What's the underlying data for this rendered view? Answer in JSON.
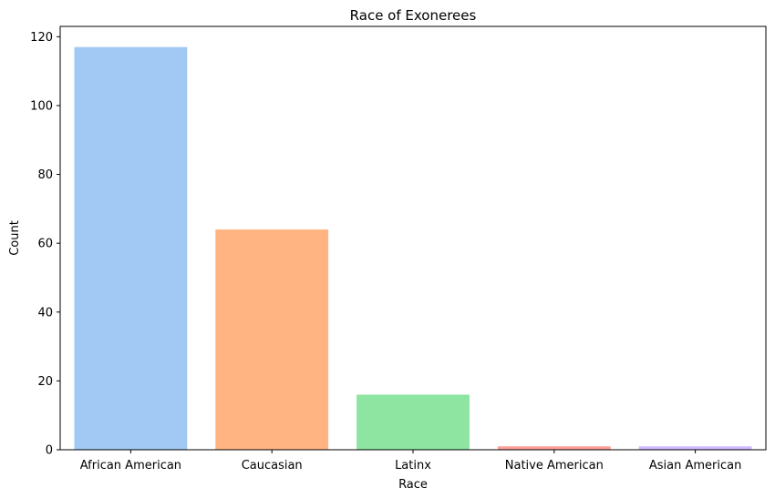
{
  "chart_data": {
    "type": "bar",
    "title": "Race of Exonerees",
    "xlabel": "Race",
    "ylabel": "Count",
    "categories": [
      "African American",
      "Caucasian",
      "Latinx",
      "Native American",
      "Asian American"
    ],
    "values": [
      117,
      64,
      16,
      1,
      1
    ],
    "colors": [
      "#a1c9f4",
      "#ffb482",
      "#8de5a1",
      "#ff9f9b",
      "#d0bbff"
    ],
    "ylim": [
      0,
      123
    ],
    "yticks": [
      0,
      20,
      40,
      60,
      80,
      100,
      120
    ],
    "grid": false,
    "legend": "none"
  }
}
